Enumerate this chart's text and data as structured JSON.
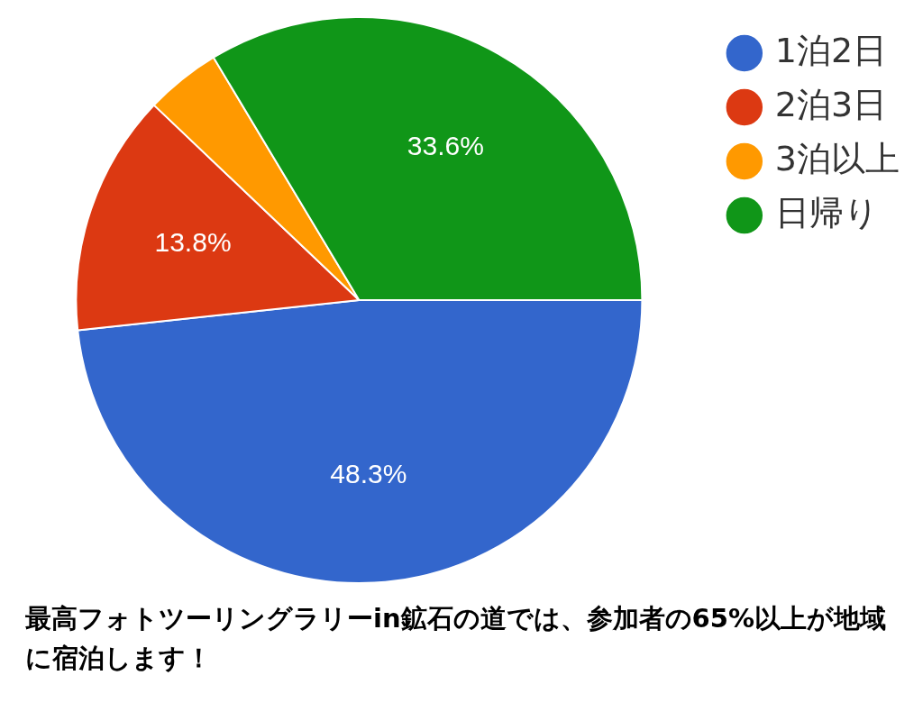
{
  "chart_data": {
    "type": "pie",
    "categories": [
      "1泊2日",
      "2泊3日",
      "3泊以上",
      "日帰り"
    ],
    "values": [
      48.3,
      13.8,
      4.3,
      33.6
    ],
    "colors": [
      "#3366cc",
      "#dc3912",
      "#ff9900",
      "#109618"
    ],
    "value_labels": [
      "48.3%",
      "13.8%",
      null,
      "33.6%"
    ],
    "legend": "top right",
    "annotations": [
      "最高フォトツーリングラリーin鉱石の道では、参加者の65%以上が地域に宿泊します！"
    ]
  }
}
